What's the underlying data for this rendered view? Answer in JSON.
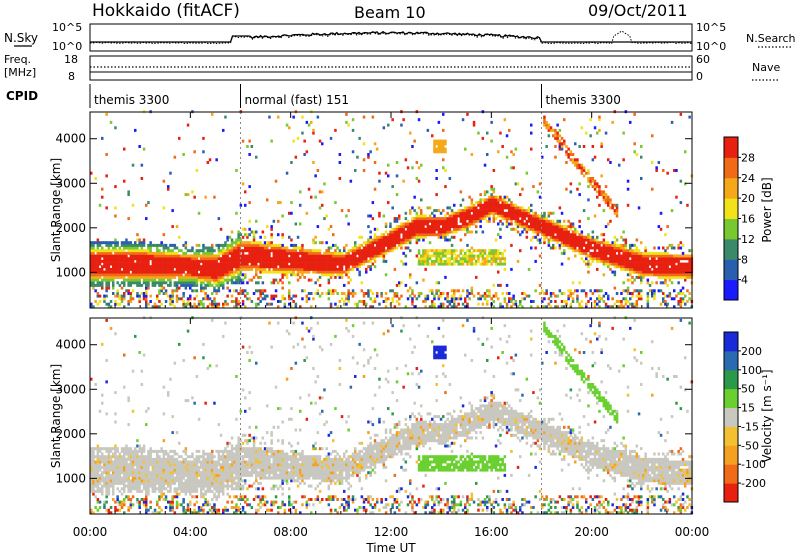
{
  "header": {
    "station": "Hokkaido (fitACF)",
    "beam": "Beam 10",
    "date": "09/Oct/2011"
  },
  "noise_panel": {
    "left_label": "N.Sky",
    "right_label": "N.Search",
    "tick_top": "10^5",
    "tick_bottom": "10^0",
    "series": [
      {
        "name": "N.Sky",
        "style": "solid"
      },
      {
        "name": "N.Search",
        "style": "dotted"
      }
    ]
  },
  "freq_panel": {
    "left_label_1": "Freq.",
    "left_label_2": "[MHz]",
    "left_tick_top": "18",
    "left_tick_bottom": "8",
    "right_label": "Nave",
    "right_tick_top": "60",
    "right_tick_bottom": "0"
  },
  "cpid": {
    "label": "CPID",
    "segments": [
      {
        "name": "themis 3300",
        "start_hour": 0,
        "end_hour": 6
      },
      {
        "name": "normal (fast) 151",
        "start_hour": 6,
        "end_hour": 18
      },
      {
        "name": "themis 3300",
        "start_hour": 18,
        "end_hour": 24
      }
    ]
  },
  "power_panel": {
    "ylabel": "Slant Range [km]",
    "yticks": [
      "1000",
      "2000",
      "3000",
      "4000"
    ],
    "colorbar_label": "Power [dB]",
    "colorbar_ticks": [
      "4",
      "8",
      "12",
      "16",
      "20",
      "24",
      "28"
    ],
    "colors": [
      "#1a1aff",
      "#2a5fb0",
      "#3a8a6a",
      "#78c830",
      "#f2e21a",
      "#f5a818",
      "#f06a18",
      "#e82010"
    ]
  },
  "velocity_panel": {
    "ylabel": "Slant Range [km]",
    "yticks": [
      "1000",
      "2000",
      "3000",
      "4000"
    ],
    "colorbar_label": "Velocity [m s⁻¹]",
    "colorbar_ticks": [
      "200",
      "100",
      "50",
      "15",
      "-15",
      "-50",
      "-100",
      "-200"
    ],
    "colors": [
      "#1a2ad8",
      "#2a6ab0",
      "#2a9a4a",
      "#6ad030",
      "#c8c8c0",
      "#f2c030",
      "#f5a020",
      "#f06a18",
      "#e82010"
    ]
  },
  "xaxis": {
    "label": "Time UT",
    "ticks": [
      "00:00",
      "04:00",
      "08:00",
      "12:00",
      "16:00",
      "20:00",
      "00:00"
    ]
  },
  "chart_data": {
    "type": "heatmap",
    "title": "Hokkaido (fitACF) Beam 10 09/Oct/2011",
    "xlabel": "Time UT",
    "ylabel": "Slant Range [km]",
    "xlim_hours": [
      0,
      24
    ],
    "ylim_km": [
      200,
      4600
    ],
    "power_scale_db": [
      0,
      30
    ],
    "velocity_scale": [
      -200,
      200
    ],
    "scatter_band": [
      {
        "hour": 0,
        "center_km": 1150,
        "width_km": 650
      },
      {
        "hour": 2,
        "center_km": 1150,
        "width_km": 650
      },
      {
        "hour": 4,
        "center_km": 1100,
        "width_km": 550
      },
      {
        "hour": 5,
        "center_km": 1050,
        "width_km": 650
      },
      {
        "hour": 6,
        "center_km": 1350,
        "width_km": 700
      },
      {
        "hour": 8,
        "center_km": 1250,
        "width_km": 600
      },
      {
        "hour": 10,
        "center_km": 1150,
        "width_km": 500
      },
      {
        "hour": 12,
        "center_km": 1700,
        "width_km": 500
      },
      {
        "hour": 13,
        "center_km": 2000,
        "width_km": 500
      },
      {
        "hour": 14,
        "center_km": 2000,
        "width_km": 450
      },
      {
        "hour": 15,
        "center_km": 2200,
        "width_km": 500
      },
      {
        "hour": 16,
        "center_km": 2500,
        "width_km": 450
      },
      {
        "hour": 17,
        "center_km": 2250,
        "width_km": 450
      },
      {
        "hour": 18,
        "center_km": 2000,
        "width_km": 450
      },
      {
        "hour": 20,
        "center_km": 1500,
        "width_km": 500
      },
      {
        "hour": 22,
        "center_km": 1150,
        "width_km": 550
      },
      {
        "hour": 24,
        "center_km": 1100,
        "width_km": 550
      }
    ]
  }
}
